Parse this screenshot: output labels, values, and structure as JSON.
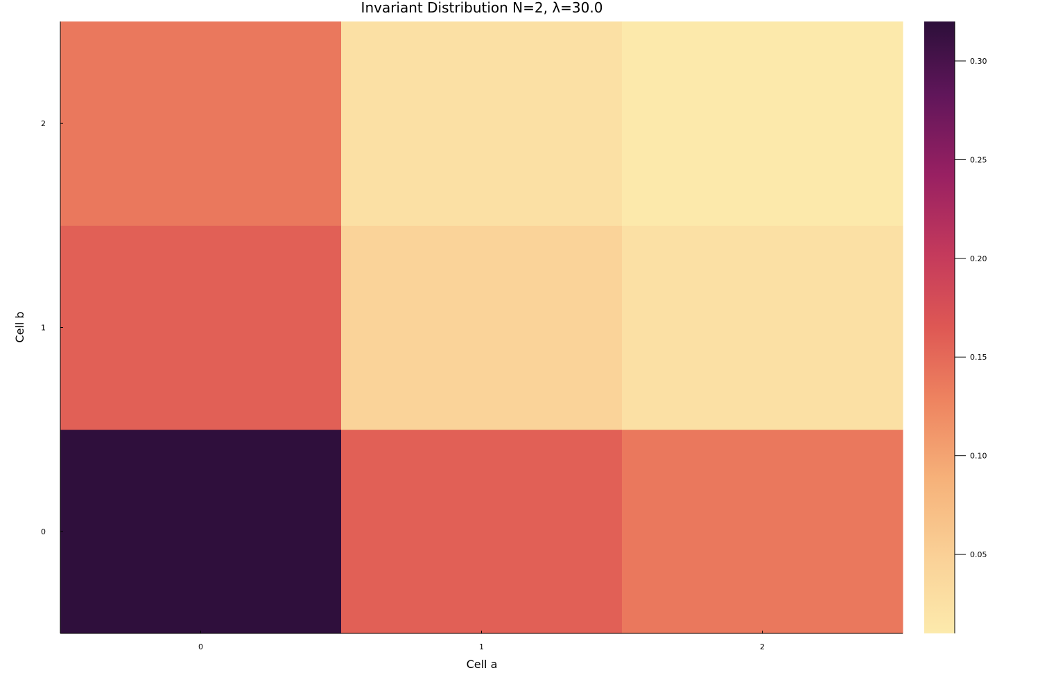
{
  "chart_data": {
    "type": "heatmap",
    "title": "Invariant Distribution N=2, λ=30.0",
    "xlabel": "Cell a",
    "ylabel": "Cell b",
    "x_categories": [
      "0",
      "1",
      "2"
    ],
    "y_categories": [
      "0",
      "1",
      "2"
    ],
    "values": [
      [
        0.318,
        0.158,
        0.138
      ],
      [
        0.158,
        0.045,
        0.025
      ],
      [
        0.138,
        0.025,
        0.012
      ]
    ],
    "colorbar": {
      "range": [
        0.01,
        0.32
      ],
      "ticks": [
        0.05,
        0.1,
        0.15,
        0.2,
        0.25,
        0.3
      ],
      "tick_labels": [
        "0.05",
        "0.10",
        "0.15",
        "0.20",
        "0.25",
        "0.30"
      ],
      "colormap": "magma-reversed"
    },
    "grid": false,
    "legend": "colorbar-right"
  }
}
